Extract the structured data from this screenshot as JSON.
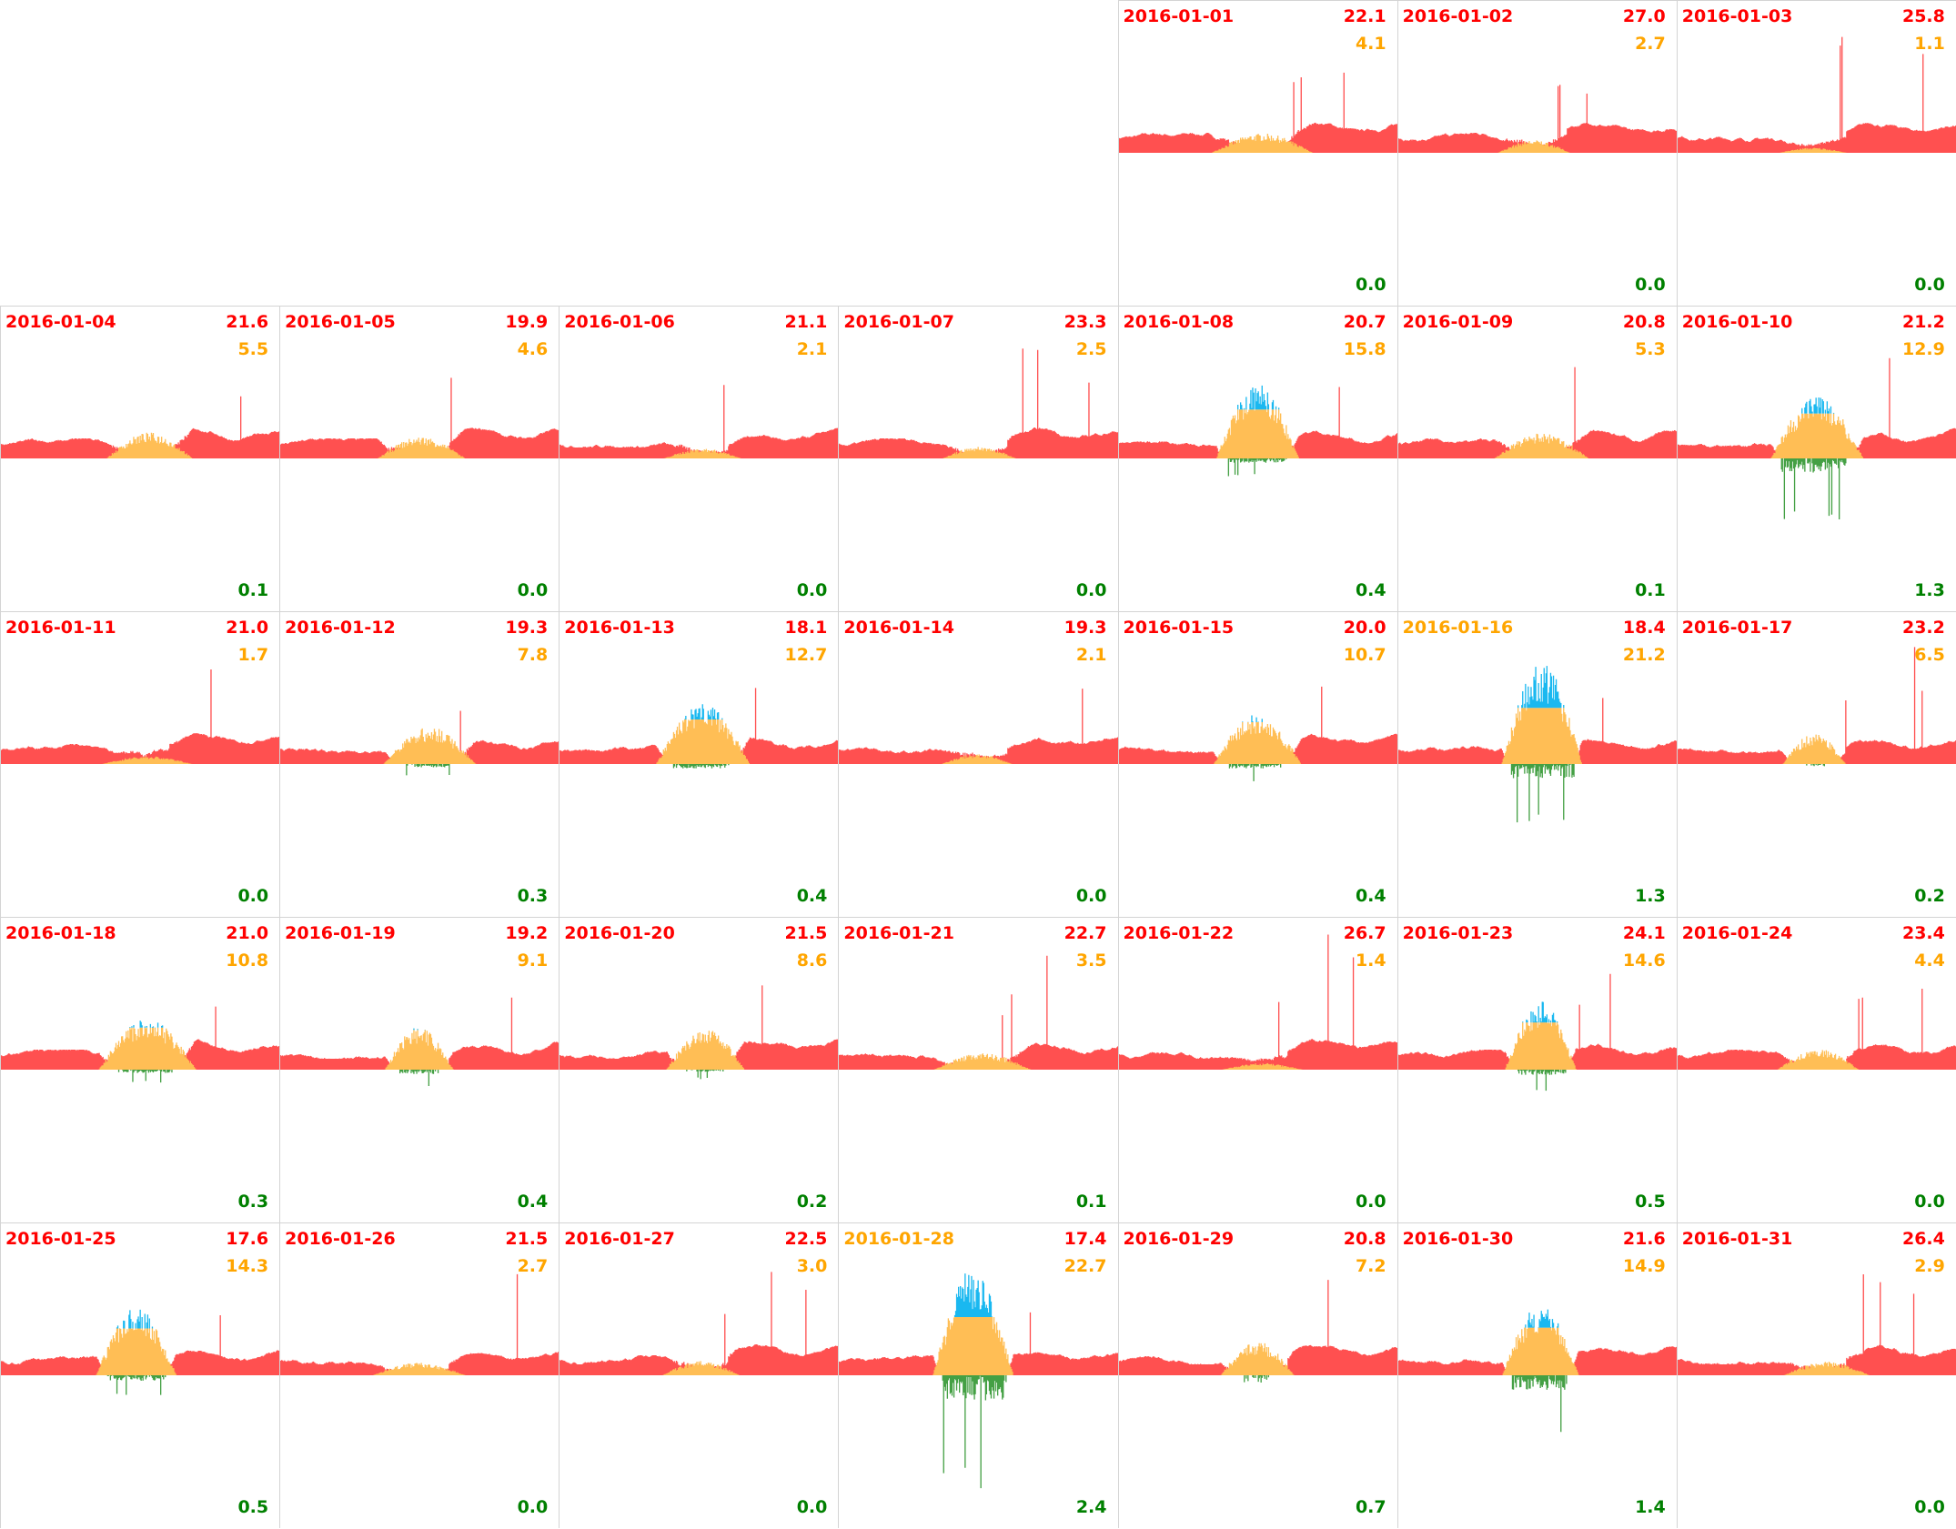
{
  "colors": {
    "consumption": "#ff5050",
    "solar_used": "#ffbe55",
    "solar_surplus": "#1ab8f0",
    "export": "#44a044",
    "text_red": "#ff0000",
    "text_orange": "#ffa500",
    "text_green": "#008000"
  },
  "chart_data": {
    "type": "area",
    "title": "",
    "layout": "calendar grid, 7 columns, month starting on 5th column",
    "leading_empty_cells": 4,
    "days": [
      {
        "date": "2016-01-01",
        "red": "22.1",
        "orange": "4.1",
        "green": "0.0",
        "highlight": false
      },
      {
        "date": "2016-01-02",
        "red": "27.0",
        "orange": "2.7",
        "green": "0.0",
        "highlight": false
      },
      {
        "date": "2016-01-03",
        "red": "25.8",
        "orange": "1.1",
        "green": "0.0",
        "highlight": false
      },
      {
        "date": "2016-01-04",
        "red": "21.6",
        "orange": "5.5",
        "green": "0.1",
        "highlight": false
      },
      {
        "date": "2016-01-05",
        "red": "19.9",
        "orange": "4.6",
        "green": "0.0",
        "highlight": false
      },
      {
        "date": "2016-01-06",
        "red": "21.1",
        "orange": "2.1",
        "green": "0.0",
        "highlight": false
      },
      {
        "date": "2016-01-07",
        "red": "23.3",
        "orange": "2.5",
        "green": "0.0",
        "highlight": false
      },
      {
        "date": "2016-01-08",
        "red": "20.7",
        "orange": "15.8",
        "green": "0.4",
        "highlight": false
      },
      {
        "date": "2016-01-09",
        "red": "20.8",
        "orange": "5.3",
        "green": "0.1",
        "highlight": false
      },
      {
        "date": "2016-01-10",
        "red": "21.2",
        "orange": "12.9",
        "green": "1.3",
        "highlight": false
      },
      {
        "date": "2016-01-11",
        "red": "21.0",
        "orange": "1.7",
        "green": "0.0",
        "highlight": false
      },
      {
        "date": "2016-01-12",
        "red": "19.3",
        "orange": "7.8",
        "green": "0.3",
        "highlight": false
      },
      {
        "date": "2016-01-13",
        "red": "18.1",
        "orange": "12.7",
        "green": "0.4",
        "highlight": false
      },
      {
        "date": "2016-01-14",
        "red": "19.3",
        "orange": "2.1",
        "green": "0.0",
        "highlight": false
      },
      {
        "date": "2016-01-15",
        "red": "20.0",
        "orange": "10.7",
        "green": "0.4",
        "highlight": false
      },
      {
        "date": "2016-01-16",
        "red": "18.4",
        "orange": "21.2",
        "green": "1.3",
        "highlight": true
      },
      {
        "date": "2016-01-17",
        "red": "23.2",
        "orange": "6.5",
        "green": "0.2",
        "highlight": false
      },
      {
        "date": "2016-01-18",
        "red": "21.0",
        "orange": "10.8",
        "green": "0.3",
        "highlight": false
      },
      {
        "date": "2016-01-19",
        "red": "19.2",
        "orange": "9.1",
        "green": "0.4",
        "highlight": false
      },
      {
        "date": "2016-01-20",
        "red": "21.5",
        "orange": "8.6",
        "green": "0.2",
        "highlight": false
      },
      {
        "date": "2016-01-21",
        "red": "22.7",
        "orange": "3.5",
        "green": "0.1",
        "highlight": false
      },
      {
        "date": "2016-01-22",
        "red": "26.7",
        "orange": "1.4",
        "green": "0.0",
        "highlight": false
      },
      {
        "date": "2016-01-23",
        "red": "24.1",
        "orange": "14.6",
        "green": "0.5",
        "highlight": false
      },
      {
        "date": "2016-01-24",
        "red": "23.4",
        "orange": "4.4",
        "green": "0.0",
        "highlight": false
      },
      {
        "date": "2016-01-25",
        "red": "17.6",
        "orange": "14.3",
        "green": "0.5",
        "highlight": false
      },
      {
        "date": "2016-01-26",
        "red": "21.5",
        "orange": "2.7",
        "green": "0.0",
        "highlight": false
      },
      {
        "date": "2016-01-27",
        "red": "22.5",
        "orange": "3.0",
        "green": "0.0",
        "highlight": false
      },
      {
        "date": "2016-01-28",
        "red": "17.4",
        "orange": "22.7",
        "green": "2.4",
        "highlight": true
      },
      {
        "date": "2016-01-29",
        "red": "20.8",
        "orange": "7.2",
        "green": "0.7",
        "highlight": false
      },
      {
        "date": "2016-01-30",
        "red": "21.6",
        "orange": "14.9",
        "green": "1.4",
        "highlight": false
      },
      {
        "date": "2016-01-31",
        "red": "26.4",
        "orange": "2.9",
        "green": "0.0",
        "highlight": false
      }
    ]
  }
}
